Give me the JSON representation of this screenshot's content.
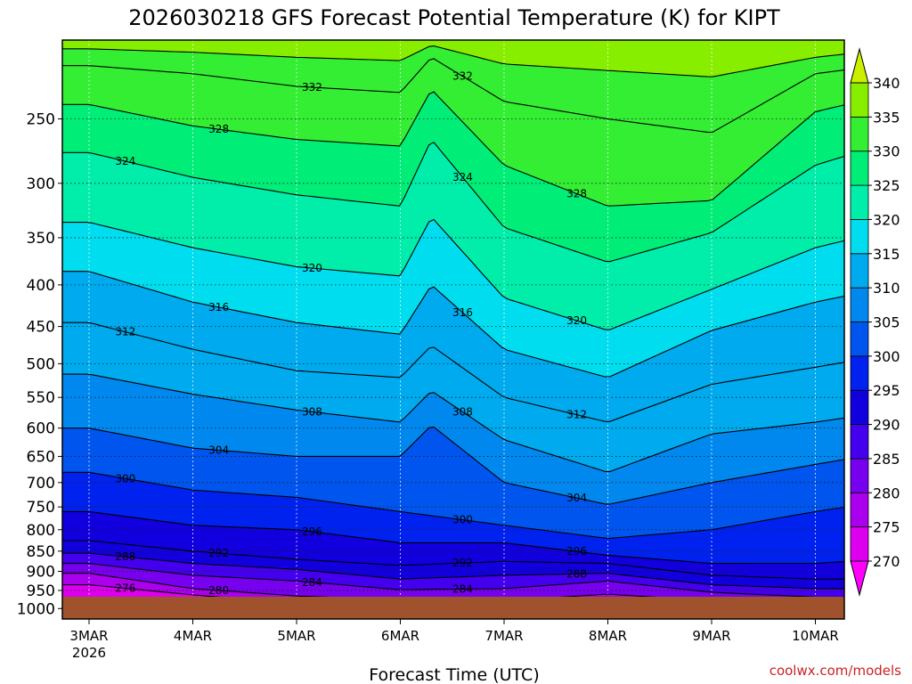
{
  "chart_data": {
    "type": "heatmap",
    "title": "2026030218 GFS Forecast Potential Temperature (K) for KIPT",
    "xlabel": "Forecast Time (UTC)",
    "ylabel": "",
    "watermark": "coolwx.com/models",
    "x_ticks": [
      "3MAR",
      "4MAR",
      "5MAR",
      "6MAR",
      "7MAR",
      "8MAR",
      "9MAR",
      "10MAR"
    ],
    "x_tick_year": "2026",
    "x_range_days": [
      0,
      7.6
    ],
    "y_axis": "pressure (hPa), log scale, inverted",
    "y_ticks": [
      250,
      300,
      350,
      400,
      450,
      500,
      550,
      600,
      650,
      700,
      750,
      800,
      850,
      900,
      950,
      1000
    ],
    "y_range": [
      200,
      1030
    ],
    "grid": true,
    "colorbar": {
      "levels": [
        270,
        275,
        280,
        285,
        290,
        295,
        300,
        305,
        310,
        315,
        320,
        325,
        330,
        335,
        340
      ],
      "labels": [
        "270",
        "275",
        "280",
        "285",
        "290",
        "295",
        "300",
        "305",
        "310",
        "315",
        "320",
        "325",
        "330",
        "335",
        "340"
      ],
      "colors": [
        "#ff00ff",
        "#dd00ee",
        "#aa00ee",
        "#7700ee",
        "#4400ee",
        "#1100dd",
        "#0022ee",
        "#0055ee",
        "#0088ee",
        "#00aaee",
        "#00ddee",
        "#00eeaa",
        "#00ee77",
        "#33ee33",
        "#88ee00",
        "#ccee00"
      ],
      "extend": "both",
      "placement": "right"
    },
    "isentropes": [
      {
        "theta": 276,
        "label": "276",
        "p_by_day": [
          {
            "day": 0,
            "p": 935
          },
          {
            "day": 1,
            "p": 962
          },
          {
            "day": 2,
            "p": 985
          },
          {
            "day": 3,
            "p": 990
          },
          {
            "day": 4,
            "p": 990
          },
          {
            "day": 5,
            "p": 985
          },
          {
            "day": 6,
            "p": 990
          },
          {
            "day": 7,
            "p": 995
          },
          {
            "day": 7.6,
            "p": 995
          }
        ]
      },
      {
        "theta": 280,
        "label": "280",
        "p_by_day": [
          {
            "day": 0,
            "p": 905
          },
          {
            "day": 1,
            "p": 945
          },
          {
            "day": 2,
            "p": 965
          },
          {
            "day": 3,
            "p": 975
          },
          {
            "day": 4,
            "p": 978
          },
          {
            "day": 5,
            "p": 960
          },
          {
            "day": 6,
            "p": 978
          },
          {
            "day": 7,
            "p": 985
          },
          {
            "day": 7.6,
            "p": 985
          }
        ]
      },
      {
        "theta": 284,
        "label": "284",
        "p_by_day": [
          {
            "day": 0,
            "p": 880
          },
          {
            "day": 1,
            "p": 910
          },
          {
            "day": 2,
            "p": 925
          },
          {
            "day": 3,
            "p": 948
          },
          {
            "day": 4,
            "p": 945
          },
          {
            "day": 5,
            "p": 925
          },
          {
            "day": 6,
            "p": 955
          },
          {
            "day": 7,
            "p": 968
          },
          {
            "day": 7.6,
            "p": 968
          }
        ]
      },
      {
        "theta": 288,
        "label": "288",
        "p_by_day": [
          {
            "day": 0,
            "p": 855
          },
          {
            "day": 1,
            "p": 880
          },
          {
            "day": 2,
            "p": 895
          },
          {
            "day": 3,
            "p": 920
          },
          {
            "day": 4,
            "p": 910
          },
          {
            "day": 5,
            "p": 905
          },
          {
            "day": 6,
            "p": 935
          },
          {
            "day": 7,
            "p": 945
          },
          {
            "day": 7.6,
            "p": 945
          }
        ]
      },
      {
        "theta": 292,
        "label": "292",
        "p_by_day": [
          {
            "day": 0,
            "p": 825
          },
          {
            "day": 1,
            "p": 850
          },
          {
            "day": 2,
            "p": 870
          },
          {
            "day": 3,
            "p": 885
          },
          {
            "day": 4,
            "p": 875
          },
          {
            "day": 5,
            "p": 880
          },
          {
            "day": 6,
            "p": 910
          },
          {
            "day": 7,
            "p": 920
          },
          {
            "day": 7.6,
            "p": 920
          }
        ]
      },
      {
        "theta": 296,
        "label": "296",
        "p_by_day": [
          {
            "day": 0,
            "p": 760
          },
          {
            "day": 1,
            "p": 790
          },
          {
            "day": 2,
            "p": 800
          },
          {
            "day": 3,
            "p": 830
          },
          {
            "day": 4,
            "p": 830
          },
          {
            "day": 5,
            "p": 860
          },
          {
            "day": 6,
            "p": 880
          },
          {
            "day": 7,
            "p": 880
          },
          {
            "day": 7.6,
            "p": 870
          }
        ]
      },
      {
        "theta": 300,
        "label": "300",
        "p_by_day": [
          {
            "day": 0,
            "p": 680
          },
          {
            "day": 1,
            "p": 715
          },
          {
            "day": 2,
            "p": 730
          },
          {
            "day": 3,
            "p": 760
          },
          {
            "day": 4,
            "p": 790
          },
          {
            "day": 5,
            "p": 820
          },
          {
            "day": 6,
            "p": 800
          },
          {
            "day": 7,
            "p": 760
          },
          {
            "day": 7.6,
            "p": 740
          }
        ]
      },
      {
        "theta": 304,
        "label": "304",
        "p_by_day": [
          {
            "day": 0,
            "p": 600
          },
          {
            "day": 1,
            "p": 635
          },
          {
            "day": 2,
            "p": 650
          },
          {
            "day": 3,
            "p": 650
          },
          {
            "day": 3.3,
            "p": 595
          },
          {
            "day": 4,
            "p": 700
          },
          {
            "day": 5,
            "p": 745
          },
          {
            "day": 6,
            "p": 700
          },
          {
            "day": 7,
            "p": 665
          },
          {
            "day": 7.6,
            "p": 645
          }
        ]
      },
      {
        "theta": 308,
        "label": "308",
        "p_by_day": [
          {
            "day": 0,
            "p": 515
          },
          {
            "day": 1,
            "p": 545
          },
          {
            "day": 2,
            "p": 570
          },
          {
            "day": 3,
            "p": 590
          },
          {
            "day": 3.3,
            "p": 540
          },
          {
            "day": 4,
            "p": 620
          },
          {
            "day": 5,
            "p": 680
          },
          {
            "day": 6,
            "p": 610
          },
          {
            "day": 7,
            "p": 590
          },
          {
            "day": 7.6,
            "p": 575
          }
        ]
      },
      {
        "theta": 312,
        "label": "312",
        "p_by_day": [
          {
            "day": 0,
            "p": 445
          },
          {
            "day": 1,
            "p": 480
          },
          {
            "day": 2,
            "p": 510
          },
          {
            "day": 3,
            "p": 520
          },
          {
            "day": 3.3,
            "p": 475
          },
          {
            "day": 4,
            "p": 550
          },
          {
            "day": 5,
            "p": 590
          },
          {
            "day": 6,
            "p": 530
          },
          {
            "day": 7,
            "p": 505
          },
          {
            "day": 7.6,
            "p": 490
          }
        ]
      },
      {
        "theta": 316,
        "label": "316",
        "p_by_day": [
          {
            "day": 0,
            "p": 385
          },
          {
            "day": 1,
            "p": 420
          },
          {
            "day": 2,
            "p": 445
          },
          {
            "day": 3,
            "p": 460
          },
          {
            "day": 3.3,
            "p": 400
          },
          {
            "day": 4,
            "p": 480
          },
          {
            "day": 5,
            "p": 520
          },
          {
            "day": 6,
            "p": 455
          },
          {
            "day": 7,
            "p": 420
          },
          {
            "day": 7.6,
            "p": 405
          }
        ]
      },
      {
        "theta": 320,
        "label": "320",
        "p_by_day": [
          {
            "day": 0,
            "p": 335
          },
          {
            "day": 1,
            "p": 360
          },
          {
            "day": 2,
            "p": 380
          },
          {
            "day": 3,
            "p": 390
          },
          {
            "day": 3.3,
            "p": 330
          },
          {
            "day": 4,
            "p": 415
          },
          {
            "day": 5,
            "p": 455
          },
          {
            "day": 6,
            "p": 405
          },
          {
            "day": 7,
            "p": 360
          },
          {
            "day": 7.6,
            "p": 345
          }
        ]
      },
      {
        "theta": 324,
        "label": "324",
        "p_by_day": [
          {
            "day": 0,
            "p": 275
          },
          {
            "day": 1,
            "p": 295
          },
          {
            "day": 2,
            "p": 310
          },
          {
            "day": 3,
            "p": 320
          },
          {
            "day": 3.3,
            "p": 265
          },
          {
            "day": 4,
            "p": 340
          },
          {
            "day": 5,
            "p": 375
          },
          {
            "day": 6,
            "p": 345
          },
          {
            "day": 7,
            "p": 285
          },
          {
            "day": 7.6,
            "p": 270
          }
        ]
      },
      {
        "theta": 328,
        "label": "328",
        "p_by_day": [
          {
            "day": 0,
            "p": 240
          },
          {
            "day": 1,
            "p": 255
          },
          {
            "day": 2,
            "p": 265
          },
          {
            "day": 3,
            "p": 270
          },
          {
            "day": 3.3,
            "p": 230
          },
          {
            "day": 4,
            "p": 285
          },
          {
            "day": 5,
            "p": 320
          },
          {
            "day": 6,
            "p": 315
          },
          {
            "day": 7,
            "p": 245
          },
          {
            "day": 7.6,
            "p": 235
          }
        ]
      },
      {
        "theta": 332,
        "label": "332",
        "p_by_day": [
          {
            "day": 0,
            "p": 215
          },
          {
            "day": 1,
            "p": 220
          },
          {
            "day": 2,
            "p": 228
          },
          {
            "day": 3,
            "p": 232
          },
          {
            "day": 3.3,
            "p": 210
          },
          {
            "day": 4,
            "p": 238
          },
          {
            "day": 5,
            "p": 250
          },
          {
            "day": 6,
            "p": 260
          },
          {
            "day": 7,
            "p": 220
          },
          {
            "day": 7.6,
            "p": 215
          }
        ]
      },
      {
        "theta": 336,
        "label": "",
        "p_by_day": [
          {
            "day": 0,
            "p": 205
          },
          {
            "day": 1,
            "p": 207
          },
          {
            "day": 2,
            "p": 210
          },
          {
            "day": 3,
            "p": 212
          },
          {
            "day": 3.3,
            "p": 203
          },
          {
            "day": 4,
            "p": 214
          },
          {
            "day": 5,
            "p": 218
          },
          {
            "day": 6,
            "p": 222
          },
          {
            "day": 7,
            "p": 210
          },
          {
            "day": 7.6,
            "p": 206
          }
        ]
      }
    ]
  }
}
